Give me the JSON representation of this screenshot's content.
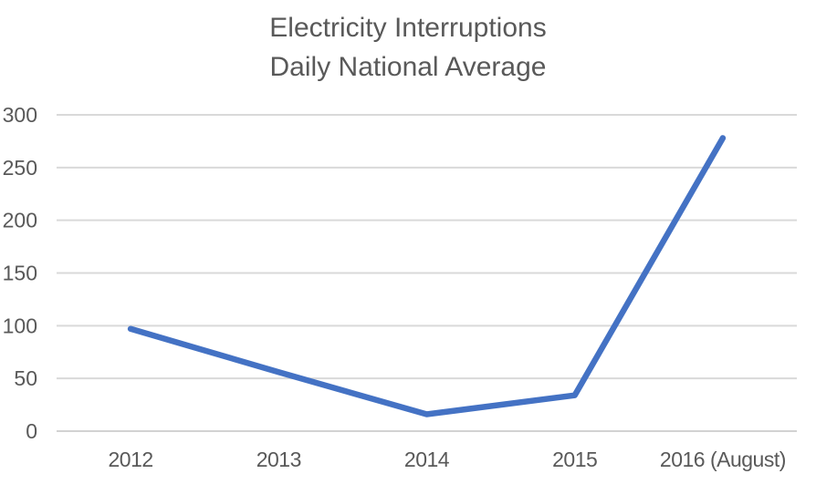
{
  "chart_data": {
    "type": "line",
    "title": "Electricity Interruptions",
    "subtitle": "Daily National Average",
    "categories": [
      "2012",
      "2013",
      "2014",
      "2015",
      "2016 (August)"
    ],
    "series": [
      {
        "name": "Daily National Average",
        "values": [
          97,
          56,
          16,
          34,
          278
        ]
      }
    ],
    "xlabel": "",
    "ylabel": "",
    "ylim": [
      0,
      300
    ],
    "yticks": [
      0,
      50,
      100,
      150,
      200,
      250,
      300
    ],
    "grid": true,
    "legend_position": "none",
    "colors": {
      "line": "#4472C4",
      "gridline": "#D9D9D9",
      "axis_line": "#D2D2D2",
      "text": "#595959",
      "background": "#FFFFFF"
    }
  }
}
